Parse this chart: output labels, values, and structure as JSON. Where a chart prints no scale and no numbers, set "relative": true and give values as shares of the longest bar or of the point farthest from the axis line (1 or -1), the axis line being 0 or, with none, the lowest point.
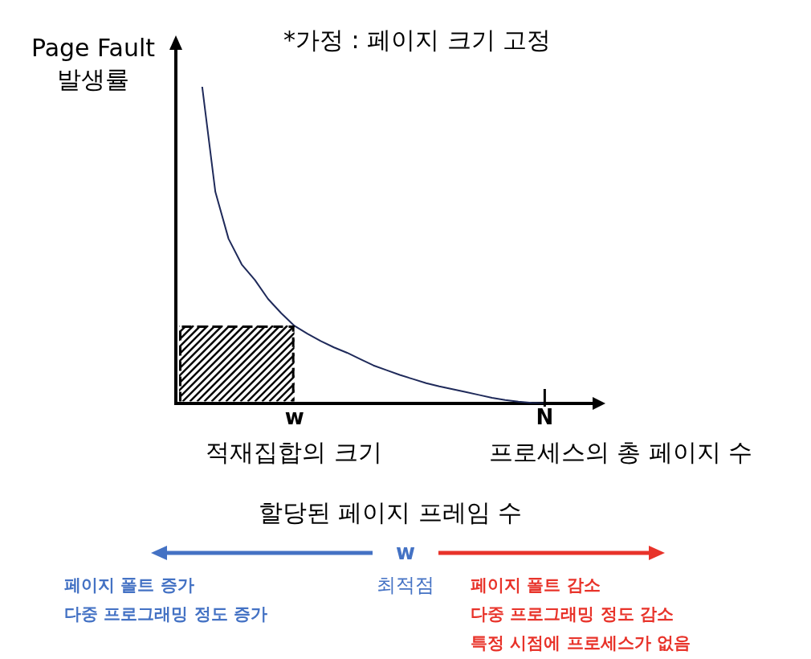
{
  "chart_data": {
    "type": "line",
    "title": "*가정 : 페이지 크기 고정",
    "ylabel": "Page Fault\n발생률",
    "xlabel": "할당된 페이지 프레임 수",
    "relative": true,
    "categories": [
      null,
      null,
      null,
      null,
      null,
      null,
      null,
      null,
      null,
      "w",
      null,
      null,
      null,
      null,
      null,
      null,
      null,
      null,
      null,
      null,
      null,
      null,
      null,
      null,
      null,
      null,
      null,
      null,
      "N",
      null,
      null,
      null,
      null
    ],
    "series": [
      {
        "color": "#1f2a5a",
        "values": [
          null,
          null,
          1,
          0.668,
          0.52,
          0.439,
          0.39,
          0.33,
          0.285,
          0.245,
          0.22,
          0.197,
          0.177,
          0.16,
          0.14,
          0.12,
          0.105,
          0.09,
          0.077,
          0.064,
          0.054,
          0.045,
          0.036,
          0.027,
          0.018,
          0.011,
          0.006,
          0.002,
          0,
          null,
          null,
          null,
          null
        ]
      }
    ],
    "grid": false,
    "legend": false,
    "marker": "none",
    "line_style": "solid",
    "annotations": [
      "적재집합의 크기",
      "프로세스의 총 페이지 수",
      "w",
      "최적점",
      "페이지 폴트 증가",
      "다중 프로그래밍 정도 증가",
      "페이지 폴트 감소",
      "다중 프로그래밍 정도 감소",
      "특정 시점에 프로세스가 없음"
    ]
  }
}
